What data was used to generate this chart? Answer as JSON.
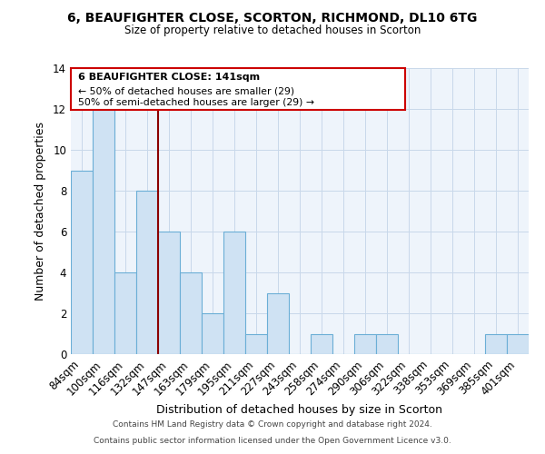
{
  "title": "6, BEAUFIGHTER CLOSE, SCORTON, RICHMOND, DL10 6TG",
  "subtitle": "Size of property relative to detached houses in Scorton",
  "xlabel": "Distribution of detached houses by size in Scorton",
  "ylabel": "Number of detached properties",
  "categories": [
    "84sqm",
    "100sqm",
    "116sqm",
    "132sqm",
    "147sqm",
    "163sqm",
    "179sqm",
    "195sqm",
    "211sqm",
    "227sqm",
    "243sqm",
    "258sqm",
    "274sqm",
    "290sqm",
    "306sqm",
    "322sqm",
    "338sqm",
    "353sqm",
    "369sqm",
    "385sqm",
    "401sqm"
  ],
  "values": [
    9,
    12,
    4,
    8,
    6,
    4,
    2,
    6,
    1,
    3,
    0,
    1,
    0,
    1,
    1,
    0,
    0,
    0,
    0,
    1,
    1
  ],
  "bar_color": "#cfe2f3",
  "bar_edge_color": "#6baed6",
  "highlight_line_color": "#8b0000",
  "annotation_text_line1": "6 BEAUFIGHTER CLOSE: 141sqm",
  "annotation_text_line2": "← 50% of detached houses are smaller (29)",
  "annotation_text_line3": "50% of semi-detached houses are larger (29) →",
  "annotation_box_color": "#cc0000",
  "annotation_fill": "#ffffff",
  "ylim": [
    0,
    14
  ],
  "yticks": [
    0,
    2,
    4,
    6,
    8,
    10,
    12,
    14
  ],
  "footer_line1": "Contains HM Land Registry data © Crown copyright and database right 2024.",
  "footer_line2": "Contains public sector information licensed under the Open Government Licence v3.0.",
  "bg_color": "#eef4fb",
  "grid_color": "#c8d8ea"
}
